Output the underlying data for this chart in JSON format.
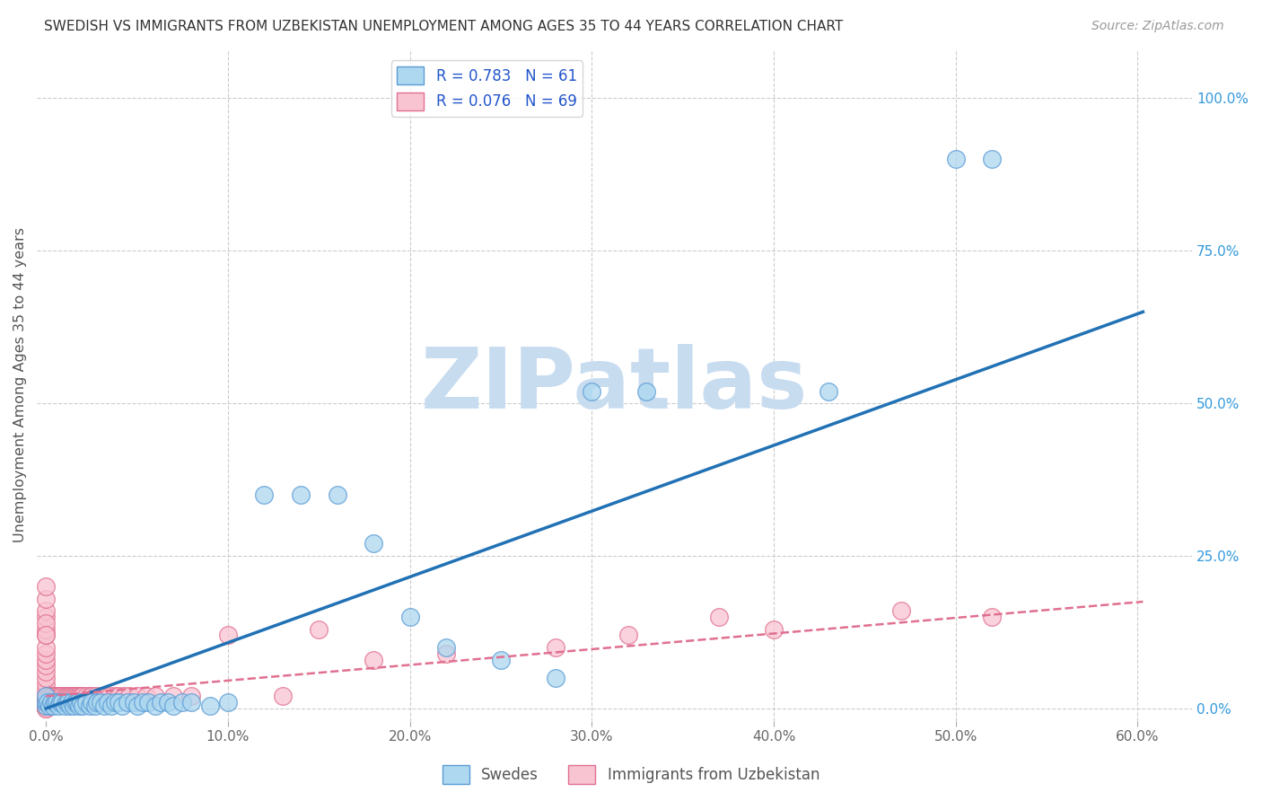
{
  "title": "SWEDISH VS IMMIGRANTS FROM UZBEKISTAN UNEMPLOYMENT AMONG AGES 35 TO 44 YEARS CORRELATION CHART",
  "source": "Source: ZipAtlas.com",
  "xlabel_ticks": [
    "0.0%",
    "10.0%",
    "20.0%",
    "30.0%",
    "40.0%",
    "50.0%",
    "60.0%"
  ],
  "xlabel_vals": [
    0.0,
    0.1,
    0.2,
    0.3,
    0.4,
    0.5,
    0.6
  ],
  "ylabel": "Unemployment Among Ages 35 to 44 years",
  "ylabel_ticks": [
    "0.0%",
    "25.0%",
    "50.0%",
    "75.0%",
    "100.0%"
  ],
  "ylabel_vals": [
    0.0,
    0.25,
    0.5,
    0.75,
    1.0
  ],
  "xlim": [
    -0.005,
    0.63
  ],
  "ylim": [
    -0.02,
    1.08
  ],
  "swedes_R": 0.783,
  "swedes_N": 61,
  "uzbek_R": 0.076,
  "uzbek_N": 69,
  "swedes_color": "#ADD8F0",
  "uzbek_color": "#F9C4D2",
  "swedes_edge_color": "#5B9BD5",
  "uzbek_edge_color": "#E07090",
  "swedes_line_color": "#2171B5",
  "uzbek_line_color": "#E07090",
  "watermark": "ZIPatlas",
  "watermark_color": "#C8DCF0",
  "grid_color": "#CCCCCC",
  "background_color": "#FFFFFF",
  "swedes_x": [
    0.0,
    0.0,
    0.0,
    0.001,
    0.002,
    0.003,
    0.004,
    0.005,
    0.006,
    0.007,
    0.008,
    0.009,
    0.01,
    0.011,
    0.012,
    0.013,
    0.014,
    0.015,
    0.016,
    0.017,
    0.018,
    0.019,
    0.02,
    0.022,
    0.024,
    0.025,
    0.027,
    0.028,
    0.03,
    0.032,
    0.034,
    0.036,
    0.038,
    0.04,
    0.042,
    0.045,
    0.048,
    0.05,
    0.053,
    0.056,
    0.06,
    0.063,
    0.067,
    0.07,
    0.075,
    0.08,
    0.09,
    0.1,
    0.12,
    0.14,
    0.16,
    0.18,
    0.2,
    0.22,
    0.25,
    0.28,
    0.3,
    0.33,
    0.43,
    0.5,
    0.52
  ],
  "swedes_y": [
    0.005,
    0.01,
    0.02,
    0.01,
    0.005,
    0.01,
    0.005,
    0.01,
    0.01,
    0.005,
    0.01,
    0.01,
    0.005,
    0.01,
    0.01,
    0.005,
    0.01,
    0.005,
    0.01,
    0.01,
    0.005,
    0.01,
    0.005,
    0.01,
    0.005,
    0.01,
    0.005,
    0.01,
    0.01,
    0.005,
    0.01,
    0.005,
    0.01,
    0.01,
    0.005,
    0.01,
    0.01,
    0.005,
    0.01,
    0.01,
    0.005,
    0.01,
    0.01,
    0.005,
    0.01,
    0.01,
    0.005,
    0.01,
    0.35,
    0.35,
    0.35,
    0.27,
    0.15,
    0.1,
    0.08,
    0.05,
    0.52,
    0.52,
    0.52,
    0.9,
    0.9
  ],
  "uzbek_x": [
    0.0,
    0.0,
    0.0,
    0.0,
    0.0,
    0.0,
    0.0,
    0.0,
    0.0,
    0.0,
    0.0,
    0.0,
    0.0,
    0.0,
    0.0,
    0.0,
    0.0,
    0.0,
    0.0,
    0.0,
    0.0,
    0.0,
    0.001,
    0.002,
    0.003,
    0.004,
    0.005,
    0.006,
    0.007,
    0.008,
    0.009,
    0.01,
    0.011,
    0.012,
    0.013,
    0.014,
    0.015,
    0.016,
    0.017,
    0.018,
    0.019,
    0.02,
    0.022,
    0.024,
    0.025,
    0.027,
    0.03,
    0.032,
    0.035,
    0.038,
    0.04,
    0.043,
    0.046,
    0.05,
    0.055,
    0.06,
    0.07,
    0.08,
    0.1,
    0.13,
    0.15,
    0.18,
    0.22,
    0.28,
    0.32,
    0.37,
    0.4,
    0.47,
    0.52
  ],
  "uzbek_y": [
    0.0,
    0.0,
    0.005,
    0.01,
    0.015,
    0.02,
    0.03,
    0.04,
    0.05,
    0.06,
    0.07,
    0.08,
    0.09,
    0.1,
    0.12,
    0.13,
    0.15,
    0.16,
    0.18,
    0.2,
    0.14,
    0.12,
    0.02,
    0.02,
    0.02,
    0.02,
    0.02,
    0.02,
    0.02,
    0.02,
    0.02,
    0.02,
    0.02,
    0.02,
    0.02,
    0.02,
    0.02,
    0.02,
    0.02,
    0.02,
    0.02,
    0.02,
    0.02,
    0.02,
    0.02,
    0.02,
    0.02,
    0.02,
    0.02,
    0.02,
    0.02,
    0.02,
    0.02,
    0.02,
    0.02,
    0.02,
    0.02,
    0.02,
    0.12,
    0.02,
    0.13,
    0.08,
    0.09,
    0.1,
    0.12,
    0.15,
    0.13,
    0.16,
    0.15
  ],
  "swedes_line_x": [
    0.0,
    0.603
  ],
  "swedes_line_y": [
    0.0,
    0.65
  ],
  "uzbek_line_x": [
    0.0,
    0.603
  ],
  "uzbek_line_y": [
    0.02,
    0.175
  ]
}
